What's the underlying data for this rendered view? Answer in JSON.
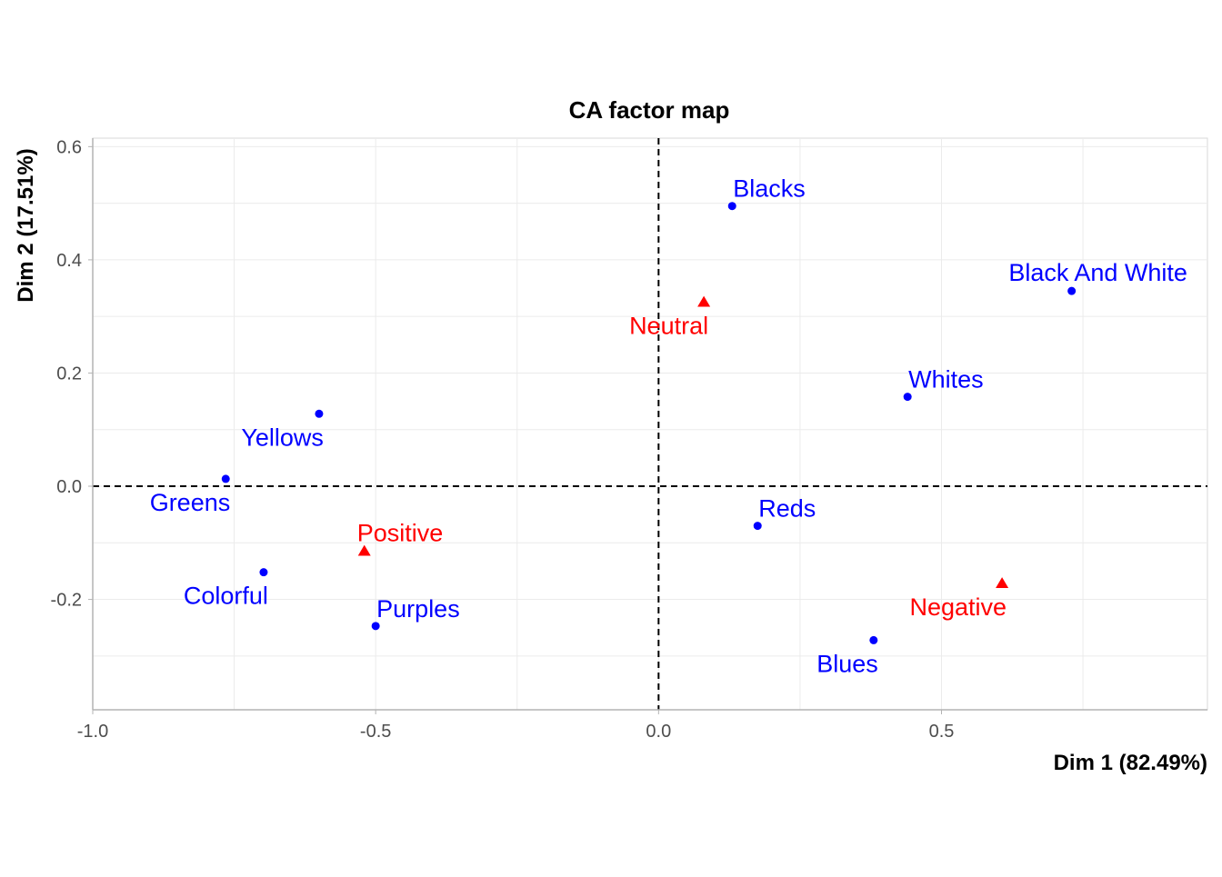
{
  "chart_data": {
    "type": "scatter",
    "title": "CA factor map",
    "xlabel": "Dim 1 (82.49%)",
    "ylabel": "Dim 2 (17.51%)",
    "xlim": [
      -1.0,
      0.97
    ],
    "ylim": [
      -0.395,
      0.615
    ],
    "xticks": [
      -1.0,
      -0.5,
      0.0,
      0.5
    ],
    "xtick_labels": [
      "-1.0",
      "-0.5",
      "0.0",
      "0.5"
    ],
    "yticks": [
      -0.2,
      0.0,
      0.2,
      0.4,
      0.6
    ],
    "ytick_labels": [
      "-0.2",
      "0.0",
      "0.2",
      "0.4",
      "0.6"
    ],
    "grid": true,
    "reference_lines": {
      "x": 0.0,
      "y": 0.0,
      "style": "dashed"
    },
    "series": [
      {
        "color": "#0000ff",
        "marker": "circle",
        "points": [
          {
            "label": "Blacks",
            "x": 0.13,
            "y": 0.495,
            "anchor": "start"
          },
          {
            "label": "Black And White",
            "x": 0.73,
            "y": 0.345,
            "anchor": "middle"
          },
          {
            "label": "Whites",
            "x": 0.44,
            "y": 0.158,
            "anchor": "start"
          },
          {
            "label": "Yellows",
            "x": -0.6,
            "y": 0.128,
            "anchor": "end-below"
          },
          {
            "label": "Greens",
            "x": -0.765,
            "y": 0.013,
            "anchor": "end-below"
          },
          {
            "label": "Reds",
            "x": 0.175,
            "y": -0.07,
            "anchor": "start"
          },
          {
            "label": "Colorful",
            "x": -0.698,
            "y": -0.152,
            "anchor": "end-below"
          },
          {
            "label": "Purples",
            "x": -0.5,
            "y": -0.247,
            "anchor": "start"
          },
          {
            "label": "Blues",
            "x": 0.38,
            "y": -0.272,
            "anchor": "end-below"
          }
        ]
      },
      {
        "color": "#ff0000",
        "marker": "triangle",
        "points": [
          {
            "label": "Neutral",
            "x": 0.08,
            "y": 0.325,
            "anchor": "end-below"
          },
          {
            "label": "Positive",
            "x": -0.52,
            "y": -0.115,
            "anchor": "start-above"
          },
          {
            "label": "Negative",
            "x": 0.607,
            "y": -0.172,
            "anchor": "end-below"
          }
        ]
      }
    ]
  }
}
